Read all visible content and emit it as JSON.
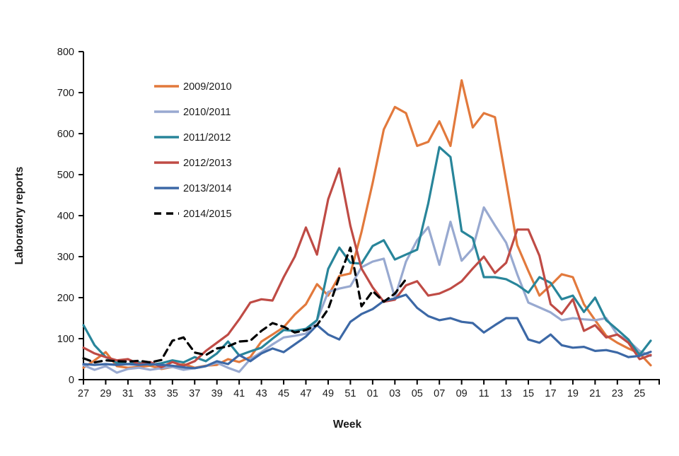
{
  "chart_data": {
    "type": "line",
    "title": "",
    "xlabel": "Week",
    "ylabel": "Laboratory reports",
    "ylim": [
      0,
      800
    ],
    "ytick_step": 100,
    "grid": false,
    "legend_position": "upper-left-inside",
    "xtick_every": 2,
    "x_categories": [
      "27",
      "28",
      "29",
      "30",
      "31",
      "32",
      "33",
      "34",
      "35",
      "36",
      "37",
      "38",
      "39",
      "40",
      "41",
      "42",
      "43",
      "44",
      "45",
      "46",
      "47",
      "48",
      "49",
      "50",
      "51",
      "52",
      "01",
      "02",
      "03",
      "04",
      "05",
      "06",
      "07",
      "08",
      "09",
      "10",
      "11",
      "12",
      "13",
      "14",
      "15",
      "16",
      "17",
      "18",
      "19",
      "20",
      "21",
      "22",
      "23",
      "24",
      "25",
      "26"
    ],
    "axis_color": "#000000",
    "text_color": "#1a1a1a",
    "series": [
      {
        "name": "2009/2010",
        "color": "#E2793C",
        "dash": null,
        "values": [
          29,
          47,
          67,
          33,
          29,
          31,
          34,
          26,
          31,
          38,
          29,
          34,
          36,
          50,
          43,
          55,
          93,
          110,
          128,
          159,
          184,
          233,
          205,
          253,
          259,
          360,
          480,
          610,
          665,
          650,
          570,
          580,
          630,
          570,
          730,
          615,
          650,
          640,
          485,
          328,
          265,
          205,
          230,
          257,
          250,
          184,
          145,
          107,
          90,
          76,
          64,
          35
        ]
      },
      {
        "name": "2010/2011",
        "color": "#98A9D0",
        "dash": null,
        "values": [
          35,
          24,
          33,
          17,
          26,
          29,
          24,
          28,
          31,
          24,
          28,
          33,
          41,
          29,
          19,
          50,
          67,
          86,
          103,
          107,
          112,
          145,
          214,
          222,
          228,
          274,
          288,
          295,
          200,
          288,
          340,
          372,
          280,
          385,
          290,
          320,
          420,
          376,
          334,
          257,
          188,
          176,
          164,
          145,
          150,
          147,
          145,
          150,
          110,
          95,
          70,
          58
        ]
      },
      {
        "name": "2011/2012",
        "color": "#28859A",
        "dash": null,
        "values": [
          133,
          84,
          55,
          41,
          38,
          42,
          36,
          40,
          47,
          42,
          55,
          45,
          64,
          93,
          59,
          69,
          78,
          100,
          121,
          119,
          124,
          145,
          270,
          322,
          285,
          283,
          326,
          340,
          293,
          305,
          317,
          430,
          567,
          543,
          362,
          345,
          250,
          250,
          245,
          231,
          212,
          250,
          236,
          196,
          205,
          165,
          200,
          145,
          122,
          98,
          60,
          95
        ]
      },
      {
        "name": "2012/2013",
        "color": "#BF4B45",
        "dash": null,
        "values": [
          78,
          64,
          55,
          47,
          50,
          38,
          43,
          30,
          43,
          34,
          45,
          70,
          90,
          110,
          147,
          188,
          196,
          193,
          250,
          300,
          371,
          305,
          440,
          515,
          375,
          271,
          225,
          190,
          195,
          230,
          240,
          205,
          210,
          222,
          240,
          271,
          300,
          260,
          285,
          366,
          366,
          302,
          184,
          160,
          196,
          119,
          133,
          103,
          110,
          90,
          50,
          60
        ]
      },
      {
        "name": "2013/2014",
        "color": "#3C68A6",
        "dash": null,
        "values": [
          38,
          36,
          38,
          36,
          38,
          36,
          38,
          36,
          34,
          30,
          28,
          33,
          45,
          38,
          60,
          45,
          64,
          76,
          67,
          86,
          105,
          133,
          110,
          98,
          141,
          160,
          172,
          192,
          198,
          207,
          175,
          155,
          145,
          150,
          141,
          138,
          115,
          133,
          150,
          150,
          98,
          90,
          110,
          84,
          78,
          80,
          70,
          72,
          66,
          55,
          58,
          68
        ]
      },
      {
        "name": "2014/2015",
        "color": "#000000",
        "dash": "10 7",
        "values": [
          52,
          42,
          47,
          45,
          44,
          46,
          42,
          48,
          95,
          103,
          66,
          60,
          76,
          81,
          93,
          95,
          119,
          138,
          129,
          115,
          121,
          133,
          172,
          250,
          322,
          179,
          216,
          190,
          210,
          245,
          null,
          null,
          null,
          null,
          null,
          null,
          null,
          null,
          null,
          null,
          null,
          null,
          null,
          null,
          null,
          null,
          null,
          null,
          null,
          null,
          null,
          null
        ]
      }
    ]
  }
}
